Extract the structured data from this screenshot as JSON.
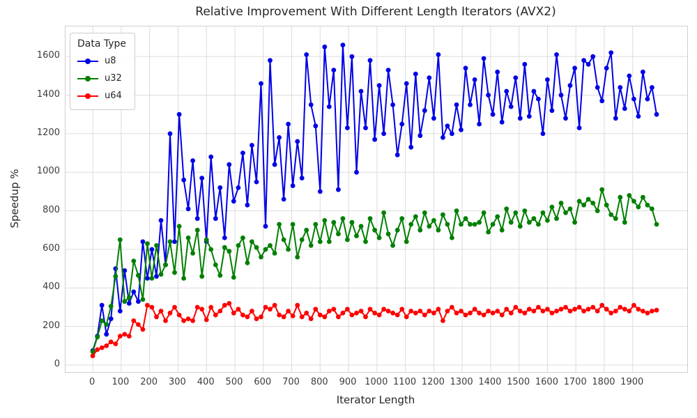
{
  "figure": {
    "title": "Relative Improvement With Different Length Iterators (AVX2)",
    "xlabel": "Iterator Length",
    "ylabel": "Speedup %",
    "legend_title": "Data Type"
  },
  "colors": {
    "u8": "#0000e6",
    "u32": "#007f00",
    "u64": "#ff0000",
    "grid": "#dcdcdc",
    "spine": "#cfcfcf",
    "text": "#262626"
  },
  "chart_data": {
    "type": "line",
    "title": "Relative Improvement With Different Length Iterators (AVX2)",
    "xlabel": "Iterator Length",
    "ylabel": "Speedup %",
    "legend_title": "Data Type",
    "legend_position": "upper left",
    "grid": true,
    "marker": "o",
    "xlim": [
      -96,
      2092
    ],
    "ylim": [
      -36,
      1756
    ],
    "xticks": [
      0,
      100,
      200,
      300,
      400,
      500,
      600,
      700,
      800,
      900,
      1000,
      1100,
      1200,
      1300,
      1400,
      1500,
      1600,
      1700,
      1800,
      1900
    ],
    "yticks": [
      0,
      200,
      400,
      600,
      800,
      1000,
      1200,
      1400,
      1600
    ],
    "x": [
      0,
      16,
      32,
      48,
      64,
      80,
      96,
      112,
      128,
      144,
      160,
      176,
      192,
      208,
      224,
      240,
      256,
      272,
      288,
      304,
      320,
      336,
      352,
      368,
      384,
      400,
      416,
      432,
      448,
      464,
      480,
      496,
      512,
      528,
      544,
      560,
      576,
      592,
      608,
      624,
      640,
      656,
      672,
      688,
      704,
      720,
      736,
      752,
      768,
      784,
      800,
      816,
      832,
      848,
      864,
      880,
      896,
      912,
      928,
      944,
      960,
      976,
      992,
      1008,
      1024,
      1040,
      1056,
      1072,
      1088,
      1104,
      1120,
      1136,
      1152,
      1168,
      1184,
      1200,
      1216,
      1232,
      1248,
      1264,
      1280,
      1296,
      1312,
      1328,
      1344,
      1360,
      1376,
      1392,
      1408,
      1424,
      1440,
      1456,
      1472,
      1488,
      1504,
      1520,
      1536,
      1552,
      1568,
      1584,
      1600,
      1616,
      1632,
      1648,
      1664,
      1680,
      1696,
      1712,
      1728,
      1744,
      1760,
      1776,
      1792,
      1808,
      1824,
      1840,
      1856,
      1872,
      1888,
      1904,
      1920,
      1936,
      1952,
      1968,
      1984
    ],
    "series": [
      {
        "name": "u8",
        "color": "#0000e6",
        "values": [
          75,
          150,
          310,
          160,
          240,
          500,
          280,
          490,
          320,
          380,
          330,
          640,
          450,
          600,
          460,
          750,
          520,
          1200,
          640,
          1300,
          960,
          810,
          1060,
          760,
          970,
          640,
          1080,
          760,
          920,
          660,
          1040,
          850,
          920,
          1100,
          830,
          1140,
          950,
          1460,
          720,
          1580,
          1040,
          1180,
          860,
          1250,
          930,
          1160,
          970,
          1610,
          1350,
          1240,
          900,
          1650,
          1340,
          1530,
          910,
          1660,
          1230,
          1600,
          1000,
          1420,
          1230,
          1580,
          1170,
          1450,
          1200,
          1530,
          1350,
          1090,
          1250,
          1460,
          1130,
          1510,
          1190,
          1320,
          1490,
          1280,
          1610,
          1180,
          1240,
          1200,
          1350,
          1220,
          1540,
          1350,
          1480,
          1250,
          1590,
          1400,
          1300,
          1520,
          1260,
          1420,
          1340,
          1490,
          1280,
          1560,
          1290,
          1420,
          1380,
          1200,
          1480,
          1320,
          1610,
          1400,
          1280,
          1450,
          1540,
          1230,
          1580,
          1560,
          1600,
          1440,
          1370,
          1540,
          1620,
          1280,
          1440,
          1330,
          1500,
          1380,
          1290,
          1520,
          1380,
          1440,
          1300
        ]
      },
      {
        "name": "u32",
        "color": "#007f00",
        "values": [
          70,
          145,
          230,
          210,
          305,
          460,
          650,
          330,
          350,
          540,
          465,
          340,
          630,
          450,
          620,
          470,
          520,
          640,
          480,
          720,
          450,
          660,
          580,
          700,
          460,
          650,
          600,
          520,
          465,
          610,
          590,
          455,
          620,
          660,
          530,
          640,
          610,
          560,
          600,
          620,
          580,
          730,
          650,
          600,
          730,
          560,
          650,
          700,
          620,
          730,
          640,
          750,
          640,
          740,
          680,
          760,
          650,
          740,
          670,
          720,
          640,
          760,
          700,
          660,
          790,
          680,
          620,
          700,
          760,
          640,
          730,
          770,
          700,
          790,
          720,
          750,
          700,
          780,
          730,
          660,
          800,
          730,
          760,
          730,
          730,
          740,
          790,
          690,
          730,
          770,
          700,
          810,
          740,
          790,
          720,
          800,
          740,
          760,
          730,
          790,
          750,
          820,
          760,
          840,
          790,
          810,
          740,
          850,
          830,
          860,
          840,
          800,
          910,
          830,
          780,
          760,
          870,
          740,
          880,
          850,
          820,
          870,
          830,
          810,
          730
        ]
      },
      {
        "name": "u64",
        "color": "#ff0000",
        "values": [
          48,
          80,
          90,
          100,
          120,
          110,
          150,
          160,
          150,
          230,
          210,
          185,
          310,
          300,
          250,
          280,
          230,
          270,
          300,
          260,
          230,
          240,
          230,
          300,
          290,
          235,
          300,
          260,
          280,
          310,
          320,
          270,
          290,
          260,
          250,
          280,
          240,
          250,
          300,
          290,
          310,
          260,
          250,
          280,
          255,
          310,
          250,
          270,
          240,
          290,
          260,
          250,
          280,
          290,
          250,
          270,
          290,
          260,
          270,
          280,
          250,
          290,
          270,
          260,
          290,
          280,
          270,
          260,
          290,
          250,
          280,
          270,
          280,
          260,
          280,
          270,
          290,
          230,
          280,
          300,
          270,
          280,
          260,
          270,
          290,
          270,
          260,
          280,
          270,
          280,
          260,
          290,
          270,
          300,
          280,
          270,
          290,
          280,
          300,
          280,
          290,
          270,
          280,
          290,
          300,
          280,
          290,
          300,
          280,
          290,
          300,
          280,
          310,
          290,
          270,
          280,
          300,
          290,
          280,
          310,
          290,
          280,
          270,
          280,
          285
        ]
      }
    ]
  }
}
